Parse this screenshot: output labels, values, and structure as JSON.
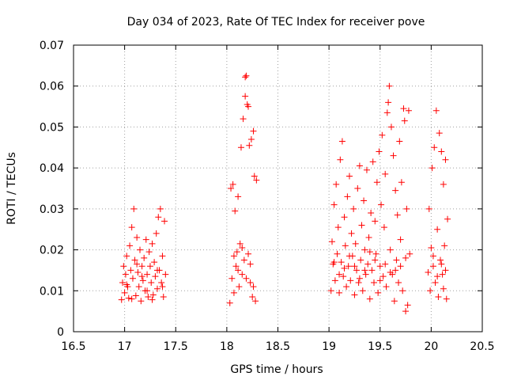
{
  "chart_data": {
    "type": "scatter",
    "title": "Day 034 of 2023, Rate Of TEC Index for receiver pove",
    "xlabel": "GPS time / hours",
    "ylabel": "ROTI / TECUs",
    "xlim": [
      16.5,
      20.5
    ],
    "ylim": [
      0,
      0.07
    ],
    "x_ticks": [
      16.5,
      17,
      17.5,
      18,
      18.5,
      19,
      19.5,
      20,
      20.5
    ],
    "x_tick_labels": [
      "16.5",
      "17",
      "17.5",
      "18",
      "18.5",
      "19",
      "19.5",
      "20",
      "20.5"
    ],
    "y_ticks": [
      0,
      0.01,
      0.02,
      0.03,
      0.04,
      0.05,
      0.06,
      0.07
    ],
    "y_tick_labels": [
      "0",
      "0.01",
      "0.02",
      "0.03",
      "0.04",
      "0.05",
      "0.06",
      "0.07"
    ],
    "grid": true,
    "marker": "+",
    "series": [
      {
        "name": "ROTI",
        "color": "#ff0000",
        "points": [
          [
            16.97,
            0.0078
          ],
          [
            16.98,
            0.012
          ],
          [
            16.99,
            0.016
          ],
          [
            17.0,
            0.0095
          ],
          [
            17.01,
            0.014
          ],
          [
            17.02,
            0.0185
          ],
          [
            17.03,
            0.011
          ],
          [
            17.04,
            0.0082
          ],
          [
            17.05,
            0.021
          ],
          [
            17.06,
            0.015
          ],
          [
            17.07,
            0.0255
          ],
          [
            17.08,
            0.013
          ],
          [
            17.09,
            0.03
          ],
          [
            17.1,
            0.0175
          ],
          [
            17.11,
            0.0088
          ],
          [
            17.12,
            0.023
          ],
          [
            17.13,
            0.0145
          ],
          [
            17.14,
            0.011
          ],
          [
            17.15,
            0.02
          ],
          [
            17.16,
            0.0075
          ],
          [
            17.17,
            0.016
          ],
          [
            17.18,
            0.0125
          ],
          [
            17.19,
            0.018
          ],
          [
            17.2,
            0.01
          ],
          [
            17.21,
            0.0225
          ],
          [
            17.22,
            0.014
          ],
          [
            17.23,
            0.0085
          ],
          [
            17.24,
            0.0195
          ],
          [
            17.25,
            0.016
          ],
          [
            17.26,
            0.012
          ],
          [
            17.27,
            0.0215
          ],
          [
            17.28,
            0.009
          ],
          [
            17.29,
            0.017
          ],
          [
            17.3,
            0.0135
          ],
          [
            17.31,
            0.024
          ],
          [
            17.32,
            0.0105
          ],
          [
            17.33,
            0.028
          ],
          [
            17.34,
            0.015
          ],
          [
            17.35,
            0.03
          ],
          [
            17.36,
            0.012
          ],
          [
            17.37,
            0.0185
          ],
          [
            17.38,
            0.0085
          ],
          [
            17.39,
            0.027
          ],
          [
            17.4,
            0.014
          ],
          [
            17.02,
            0.0115
          ],
          [
            17.12,
            0.0165
          ],
          [
            17.22,
            0.01
          ],
          [
            17.32,
            0.015
          ],
          [
            17.07,
            0.008
          ],
          [
            17.17,
            0.0135
          ],
          [
            17.27,
            0.0078
          ],
          [
            17.37,
            0.011
          ],
          [
            18.03,
            0.007
          ],
          [
            18.04,
            0.035
          ],
          [
            18.05,
            0.013
          ],
          [
            18.06,
            0.036
          ],
          [
            18.07,
            0.0095
          ],
          [
            18.08,
            0.0295
          ],
          [
            18.09,
            0.016
          ],
          [
            18.1,
            0.0195
          ],
          [
            18.11,
            0.033
          ],
          [
            18.12,
            0.011
          ],
          [
            18.13,
            0.0215
          ],
          [
            18.14,
            0.045
          ],
          [
            18.15,
            0.014
          ],
          [
            18.16,
            0.052
          ],
          [
            18.17,
            0.0175
          ],
          [
            18.18,
            0.0622
          ],
          [
            18.19,
            0.0625
          ],
          [
            18.2,
            0.0555
          ],
          [
            18.21,
            0.019
          ],
          [
            18.22,
            0.0455
          ],
          [
            18.23,
            0.012
          ],
          [
            18.24,
            0.047
          ],
          [
            18.25,
            0.0085
          ],
          [
            18.26,
            0.049
          ],
          [
            18.27,
            0.038
          ],
          [
            18.28,
            0.0075
          ],
          [
            18.29,
            0.037
          ],
          [
            18.07,
            0.0185
          ],
          [
            18.11,
            0.015
          ],
          [
            18.15,
            0.0205
          ],
          [
            18.19,
            0.013
          ],
          [
            18.23,
            0.0165
          ],
          [
            18.26,
            0.011
          ],
          [
            18.18,
            0.0575
          ],
          [
            18.21,
            0.055
          ],
          [
            19.02,
            0.01
          ],
          [
            19.03,
            0.022
          ],
          [
            19.04,
            0.0165
          ],
          [
            19.05,
            0.031
          ],
          [
            19.06,
            0.0125
          ],
          [
            19.07,
            0.036
          ],
          [
            19.08,
            0.019
          ],
          [
            19.09,
            0.0255
          ],
          [
            19.1,
            0.0095
          ],
          [
            19.11,
            0.042
          ],
          [
            19.12,
            0.017
          ],
          [
            19.13,
            0.0465
          ],
          [
            19.14,
            0.0135
          ],
          [
            19.15,
            0.028
          ],
          [
            19.16,
            0.021
          ],
          [
            19.17,
            0.011
          ],
          [
            19.18,
            0.033
          ],
          [
            19.19,
            0.016
          ],
          [
            19.2,
            0.038
          ],
          [
            19.21,
            0.0125
          ],
          [
            19.22,
            0.024
          ],
          [
            19.23,
            0.0185
          ],
          [
            19.24,
            0.03
          ],
          [
            19.25,
            0.009
          ],
          [
            19.26,
            0.0215
          ],
          [
            19.27,
            0.015
          ],
          [
            19.28,
            0.035
          ],
          [
            19.29,
            0.012
          ],
          [
            19.3,
            0.0405
          ],
          [
            19.31,
            0.0175
          ],
          [
            19.32,
            0.026
          ],
          [
            19.33,
            0.01
          ],
          [
            19.34,
            0.032
          ],
          [
            19.35,
            0.02
          ],
          [
            19.36,
            0.014
          ],
          [
            19.37,
            0.0395
          ],
          [
            19.38,
            0.0165
          ],
          [
            19.39,
            0.023
          ],
          [
            19.4,
            0.008
          ],
          [
            19.41,
            0.029
          ],
          [
            19.42,
            0.015
          ],
          [
            19.43,
            0.0415
          ],
          [
            19.44,
            0.012
          ],
          [
            19.45,
            0.027
          ],
          [
            19.46,
            0.019
          ],
          [
            19.47,
            0.0365
          ],
          [
            19.48,
            0.0095
          ],
          [
            19.49,
            0.044
          ],
          [
            19.5,
            0.016
          ],
          [
            19.51,
            0.031
          ],
          [
            19.52,
            0.048
          ],
          [
            19.53,
            0.0135
          ],
          [
            19.54,
            0.0255
          ],
          [
            19.55,
            0.0385
          ],
          [
            19.56,
            0.011
          ],
          [
            19.57,
            0.0535
          ],
          [
            19.58,
            0.056
          ],
          [
            19.59,
            0.06
          ],
          [
            19.6,
            0.02
          ],
          [
            19.61,
            0.05
          ],
          [
            19.62,
            0.014
          ],
          [
            19.63,
            0.043
          ],
          [
            19.64,
            0.0075
          ],
          [
            19.65,
            0.0345
          ],
          [
            19.66,
            0.0175
          ],
          [
            19.67,
            0.0285
          ],
          [
            19.68,
            0.012
          ],
          [
            19.69,
            0.0465
          ],
          [
            19.7,
            0.0225
          ],
          [
            19.71,
            0.0365
          ],
          [
            19.72,
            0.01
          ],
          [
            19.73,
            0.0545
          ],
          [
            19.74,
            0.0515
          ],
          [
            19.75,
            0.005
          ],
          [
            19.76,
            0.03
          ],
          [
            19.77,
            0.0065
          ],
          [
            19.78,
            0.054
          ],
          [
            19.79,
            0.019
          ],
          [
            19.05,
            0.017
          ],
          [
            19.15,
            0.0155
          ],
          [
            19.25,
            0.016
          ],
          [
            19.35,
            0.015
          ],
          [
            19.45,
            0.0175
          ],
          [
            19.55,
            0.0165
          ],
          [
            19.65,
            0.015
          ],
          [
            19.75,
            0.018
          ],
          [
            19.1,
            0.014
          ],
          [
            19.2,
            0.0185
          ],
          [
            19.3,
            0.013
          ],
          [
            19.4,
            0.0195
          ],
          [
            19.5,
            0.0125
          ],
          [
            19.6,
            0.0145
          ],
          [
            19.7,
            0.016
          ],
          [
            19.97,
            0.0145
          ],
          [
            19.98,
            0.03
          ],
          [
            19.99,
            0.01
          ],
          [
            20.0,
            0.0205
          ],
          [
            20.01,
            0.04
          ],
          [
            20.02,
            0.016
          ],
          [
            20.03,
            0.045
          ],
          [
            20.04,
            0.012
          ],
          [
            20.05,
            0.054
          ],
          [
            20.06,
            0.025
          ],
          [
            20.07,
            0.0085
          ],
          [
            20.08,
            0.0485
          ],
          [
            20.09,
            0.0175
          ],
          [
            20.1,
            0.044
          ],
          [
            20.11,
            0.014
          ],
          [
            20.12,
            0.036
          ],
          [
            20.13,
            0.021
          ],
          [
            20.14,
            0.042
          ],
          [
            20.15,
            0.008
          ],
          [
            20.16,
            0.0275
          ],
          [
            20.02,
            0.0185
          ],
          [
            20.06,
            0.0135
          ],
          [
            20.1,
            0.0165
          ],
          [
            20.14,
            0.015
          ],
          [
            20.12,
            0.0105
          ]
        ]
      }
    ]
  }
}
